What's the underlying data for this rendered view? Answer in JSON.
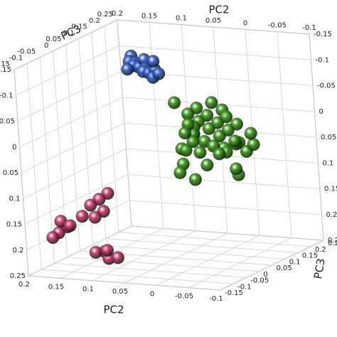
{
  "chart_data": {
    "type": "scatter3d",
    "x_label": "PC2",
    "y_label": "PC3",
    "xlim": [
      0.2,
      -0.1
    ],
    "xticks": [
      0.2,
      0.15,
      0.1,
      0.05,
      0,
      -0.05,
      -0.1
    ],
    "ylim": [
      0.25,
      -0.15
    ],
    "yticks": [
      0.25,
      0.2,
      0.15,
      0.1,
      0.05,
      0,
      -0.05,
      -0.1,
      -0.15
    ],
    "zlim": [
      -0.15,
      0.25
    ],
    "zticks": [
      -0.15,
      -0.1,
      -0.05,
      0,
      0.05,
      0.1,
      0.15,
      0.2,
      0.25
    ],
    "grid": true,
    "series": [
      {
        "color": "#3a63d6",
        "x": [
          0.17,
          0.165,
          0.16,
          0.155,
          0.15,
          0.15,
          0.145,
          0.14,
          0.135,
          0.13,
          0.125,
          0.12,
          0.16,
          0.14
        ],
        "y": [
          0.22,
          0.2,
          0.21,
          0.19,
          0.2,
          0.22,
          0.21,
          0.19,
          0.2,
          0.21,
          0.19,
          0.2,
          0.18,
          0.23
        ],
        "z": [
          -0.09,
          -0.085,
          -0.08,
          -0.08,
          -0.075,
          -0.085,
          -0.07,
          -0.07,
          -0.065,
          -0.07,
          -0.06,
          -0.065,
          -0.075,
          -0.08
        ]
      },
      {
        "color": "#3f9e1c",
        "x": [
          0.0,
          -0.01,
          -0.02,
          -0.03,
          0.01,
          0.02,
          -0.04,
          -0.05,
          0.0,
          -0.02,
          -0.03,
          -0.01,
          0.01,
          -0.06,
          -0.07,
          -0.04,
          -0.05,
          0.02,
          0.03,
          0.04,
          0.05,
          0.06,
          0.05,
          0.03,
          0.0,
          -0.02,
          -0.04,
          -0.06,
          -0.08,
          -0.07,
          0.01,
          -0.03,
          0.04,
          0.02,
          -0.01,
          -0.05,
          0.0,
          -0.03,
          0.03,
          -0.06
        ],
        "y": [
          0.05,
          0.06,
          0.04,
          0.05,
          0.07,
          0.06,
          0.03,
          0.04,
          0.03,
          0.02,
          0.07,
          0.08,
          0.04,
          0.05,
          0.03,
          0.06,
          0.02,
          0.08,
          0.1,
          0.12,
          0.13,
          0.14,
          0.1,
          0.12,
          0.1,
          0.1,
          0.09,
          0.08,
          0.06,
          0.02,
          0.02,
          0.0,
          0.06,
          0.03,
          0.0,
          0.06,
          0.12,
          0.11,
          0.04,
          0.1
        ],
        "z": [
          -0.02,
          -0.03,
          -0.01,
          -0.02,
          -0.04,
          -0.03,
          0.0,
          -0.01,
          0.0,
          0.01,
          -0.04,
          -0.05,
          -0.01,
          -0.02,
          0.01,
          -0.03,
          0.02,
          0.0,
          0.02,
          0.04,
          0.01,
          0.03,
          0.05,
          0.06,
          0.04,
          0.05,
          0.03,
          0.04,
          0.02,
          0.07,
          0.03,
          0.05,
          -0.05,
          0.06,
          0.08,
          0.07,
          0.06,
          0.03,
          0.08,
          0.01
        ]
      },
      {
        "color": "#d63a78",
        "x": [
          0.1,
          0.11,
          0.12,
          0.1,
          0.11,
          0.13,
          0.15,
          0.16,
          0.17,
          0.16,
          0.15,
          0.09,
          0.1,
          0.08,
          0.07,
          0.09
        ],
        "y": [
          -0.07,
          -0.08,
          -0.09,
          -0.09,
          -0.1,
          -0.1,
          -0.11,
          -0.12,
          -0.12,
          -0.11,
          -0.1,
          -0.12,
          -0.13,
          -0.13,
          -0.12,
          -0.11
        ],
        "z": [
          0.1,
          0.11,
          0.12,
          0.13,
          0.14,
          0.14,
          0.16,
          0.17,
          0.18,
          0.15,
          0.16,
          0.2,
          0.2,
          0.21,
          0.21,
          0.2
        ]
      }
    ]
  }
}
